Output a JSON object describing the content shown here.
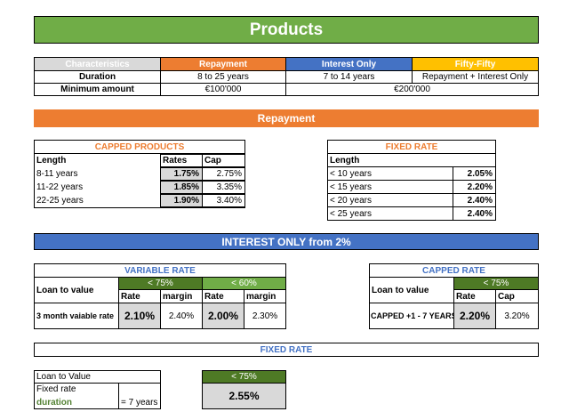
{
  "colors": {
    "green": "#70ad47",
    "dark_green": "#4e7a25",
    "orange": "#ed7d31",
    "blue": "#4472c4",
    "yellow": "#ffc000",
    "gray": "#d9d9d9"
  },
  "title": "Products",
  "summary": {
    "headers": [
      "Characteristics",
      "Repayment",
      "Interest Only",
      "Fifty-Fifty"
    ],
    "duration_label": "Duration",
    "duration": [
      "8 to 25 years",
      "7 to 14 years",
      "Repayment + Interest Only"
    ],
    "min_label": "Minimum amount",
    "min_repayment": "€100'000",
    "min_other": "€200'000"
  },
  "repayment": {
    "title": "Repayment",
    "capped": {
      "title": "CAPPED PRODUCTS",
      "col_length": "Length",
      "col_rates": "Rates",
      "col_cap": "Cap",
      "rows": [
        {
          "length": "8-11 years",
          "rate": "1.75%",
          "cap": "2.75%"
        },
        {
          "length": "11-22 years",
          "rate": "1.85%",
          "cap": "3.35%"
        },
        {
          "length": "22-25 years",
          "rate": "1.90%",
          "cap": "3.40%"
        }
      ]
    },
    "fixed": {
      "title": "FIXED RATE",
      "col_length": "Length",
      "rows": [
        {
          "length": "< 10 years",
          "rate": "2.05%"
        },
        {
          "length": "< 15 years",
          "rate": "2.20%"
        },
        {
          "length": "< 20 years",
          "rate": "2.40%"
        },
        {
          "length": "< 25 years",
          "rate": "2.40%"
        }
      ]
    }
  },
  "interest_only": {
    "title": "INTEREST ONLY from 2%",
    "variable": {
      "title": "VARIABLE RATE",
      "ltv_label": "Loan to value",
      "band1": "< 75%",
      "band2": "< 60%",
      "rate_label": "Rate",
      "margin_label": "margin",
      "row_label": "3 month vaiable rate",
      "rate1": "2.10%",
      "margin1": "2.40%",
      "rate2": "2.00%",
      "margin2": "2.30%"
    },
    "capped": {
      "title": "CAPPED RATE",
      "ltv_label": "Loan to value",
      "band": "< 75%",
      "rate_label": "Rate",
      "cap_label": "Cap",
      "row_label": "CAPPED +1 - 7 YEARS",
      "rate": "2.20%",
      "cap": "3.20%"
    },
    "fixed": {
      "title": "FIXED RATE",
      "ltv_label": "Loan to Value",
      "fixed_rate_label": "Fixed rate",
      "duration_label": "duration",
      "duration_value": "= 7 years",
      "band": "< 75%",
      "rate": "2.55%"
    }
  }
}
